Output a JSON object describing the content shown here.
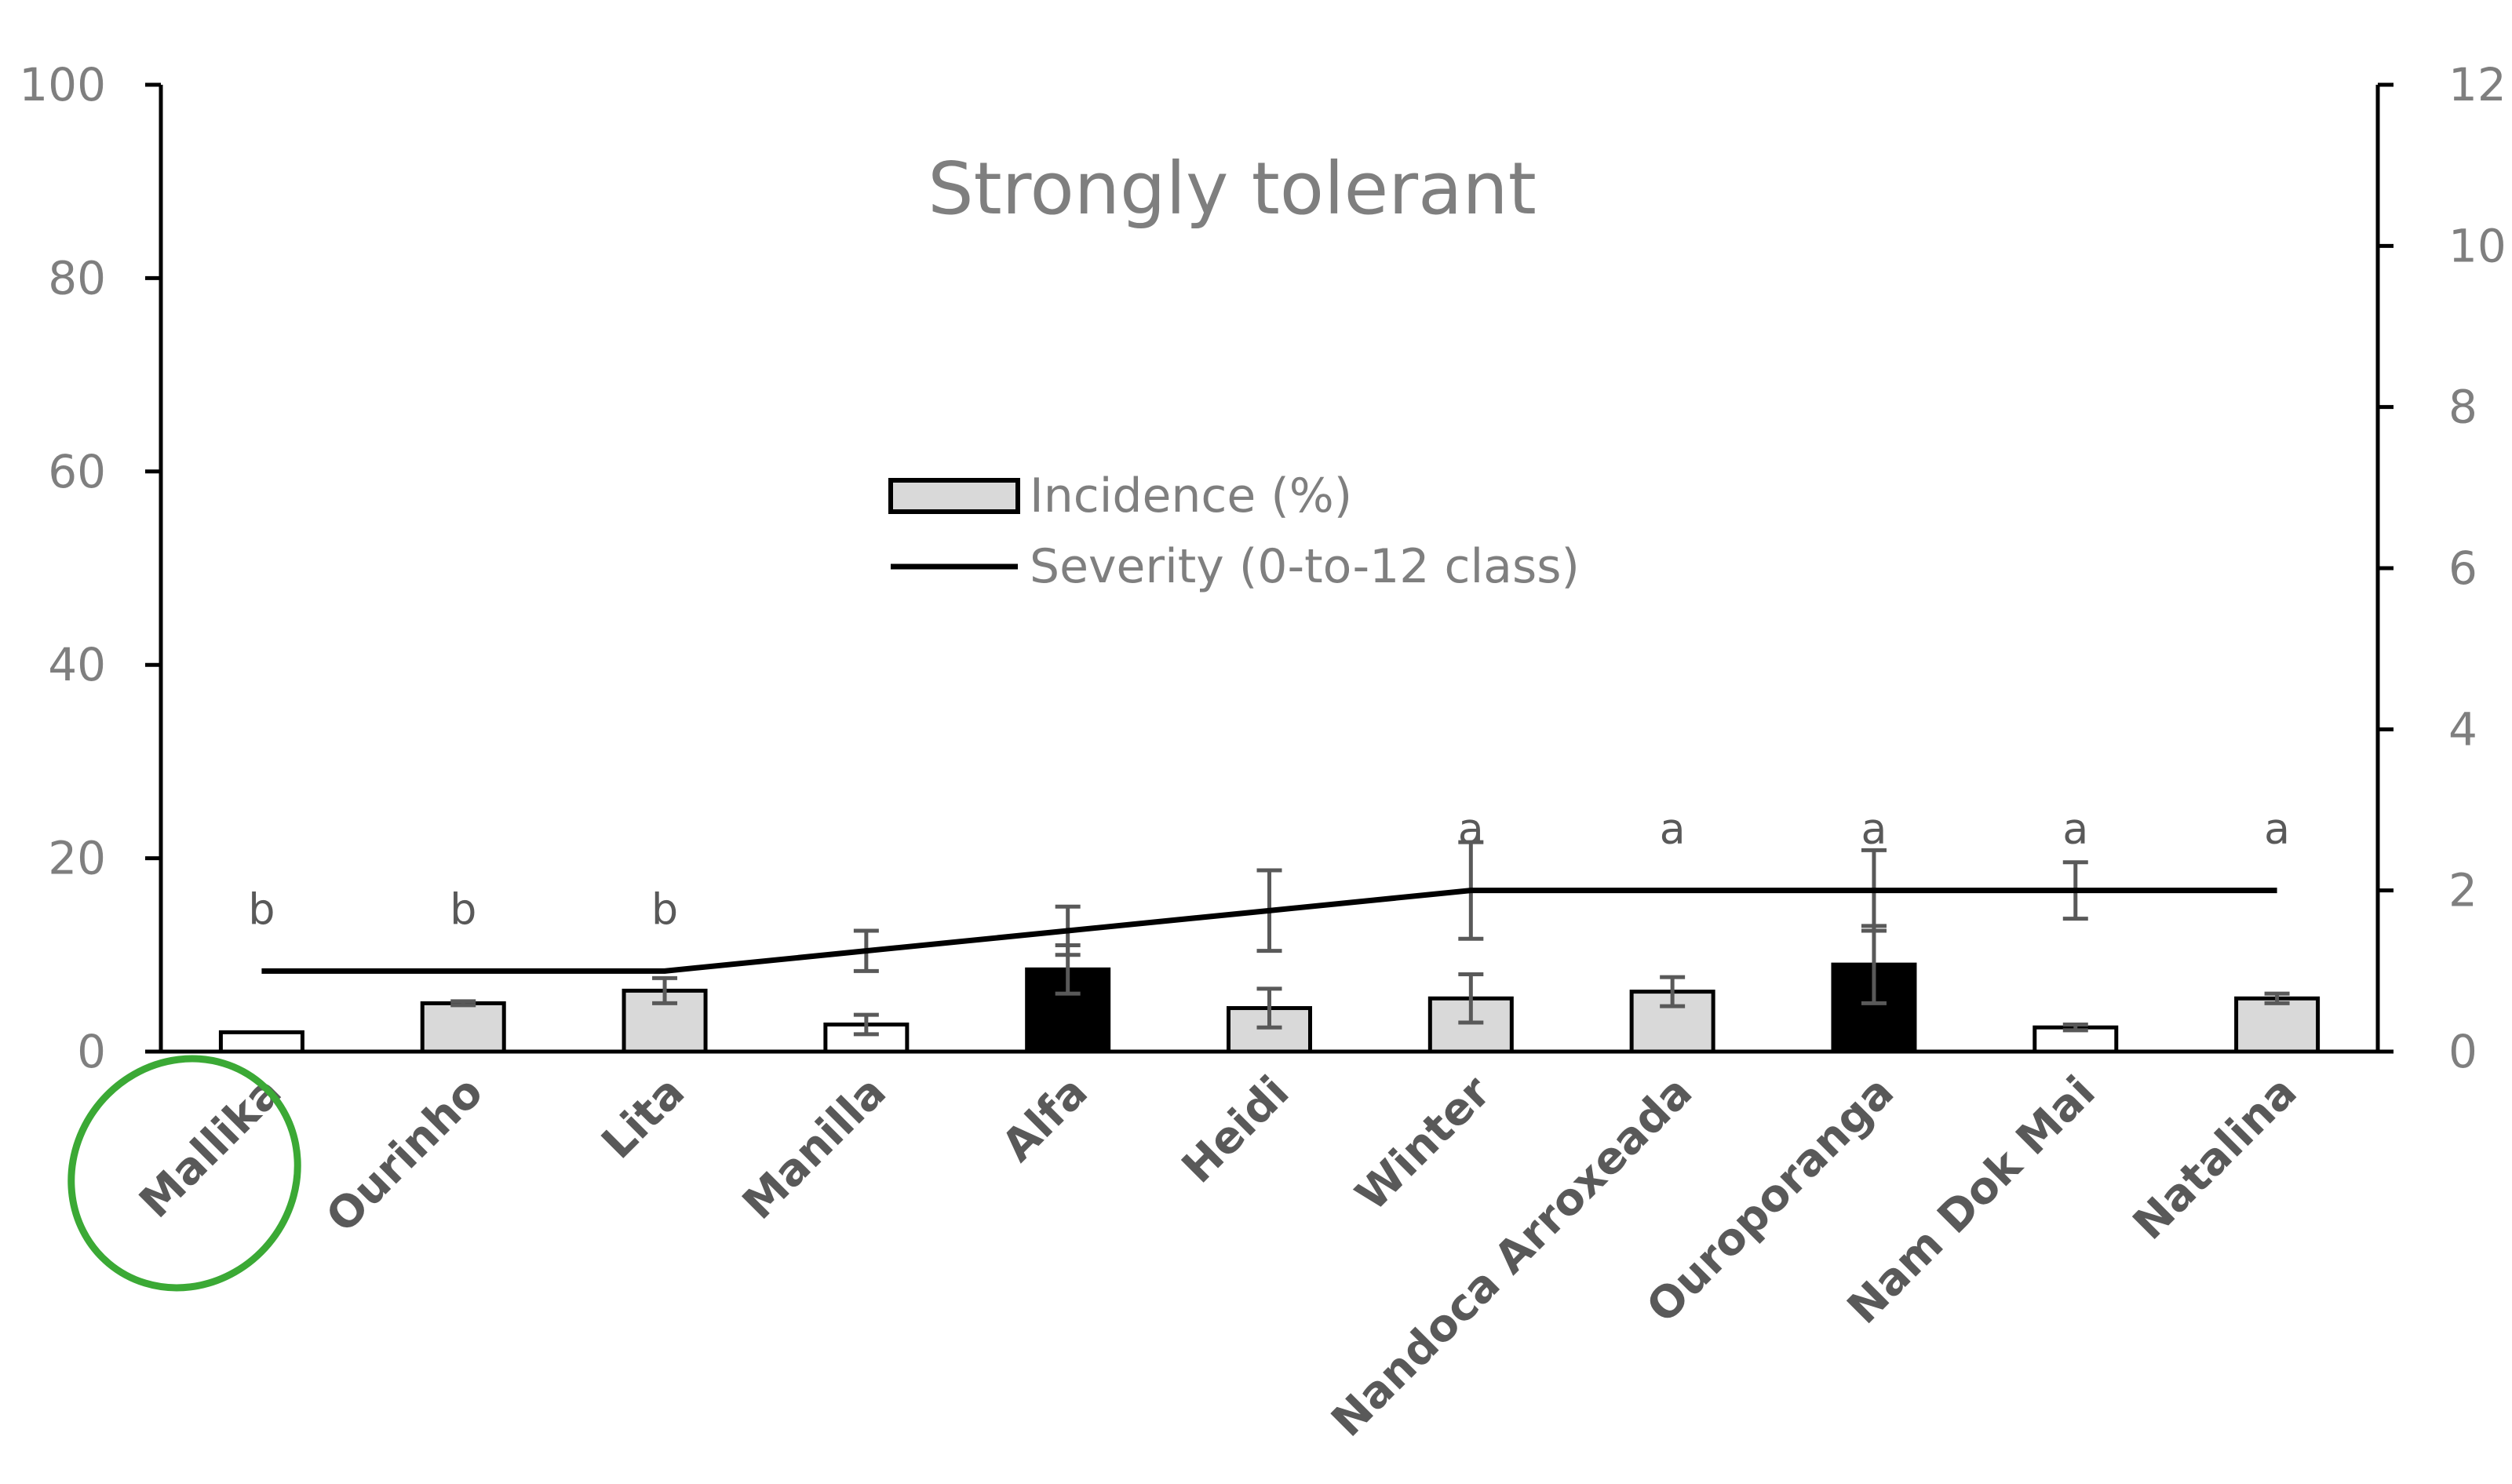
{
  "chart_data": {
    "type": "bar",
    "title": "Strongly tolerant",
    "categories": [
      "Mallika",
      "Ourinho",
      "Lita",
      "Manilla",
      "Alfa",
      "Heidi",
      "Winter",
      "Nandoca Arroxeada",
      "Ouroporanga",
      "Nam Dok Mai",
      "Natalina"
    ],
    "y_left": {
      "ylim": [
        0,
        100
      ],
      "ticks": [
        "0",
        "20",
        "40",
        "60",
        "80",
        "100"
      ]
    },
    "y_right": {
      "ylim": [
        0,
        12
      ],
      "ticks": [
        "0",
        "2",
        "4",
        "6",
        "8",
        "10",
        "12"
      ]
    },
    "series": [
      {
        "name": "Incidence (%)",
        "type": "bar",
        "axis": "left",
        "values": [
          2.0,
          5.0,
          6.3,
          2.8,
          8.5,
          4.5,
          5.5,
          6.2,
          9.0,
          2.5,
          5.5
        ],
        "errors": [
          0.1,
          0.2,
          1.3,
          1.0,
          2.5,
          2.0,
          2.5,
          1.5,
          4.0,
          0.3,
          0.5
        ],
        "fill": [
          "#ffffff",
          "#d9d9d9",
          "#d9d9d9",
          "#ffffff",
          "#000000",
          "#d9d9d9",
          "#d9d9d9",
          "#d9d9d9",
          "#000000",
          "#ffffff",
          "#d9d9d9"
        ]
      },
      {
        "name": "Severity (0-to-12 class)",
        "type": "line",
        "axis": "right",
        "values": [
          1,
          1,
          1,
          1.25,
          1.5,
          1.75,
          2,
          2,
          2,
          2,
          2
        ],
        "errors": [
          0,
          0,
          0,
          0.25,
          0.3,
          0.5,
          0.6,
          0,
          0.5,
          0.35,
          0
        ]
      }
    ],
    "significance_letters": [
      "b",
      "b",
      "b",
      "",
      "",
      "",
      "a",
      "a",
      "a",
      "a",
      "a"
    ],
    "legend": {
      "placement": "center"
    },
    "annotations": [
      {
        "type": "ellipse-highlight",
        "target": "Mallika",
        "color": "#3ba935"
      }
    ]
  }
}
